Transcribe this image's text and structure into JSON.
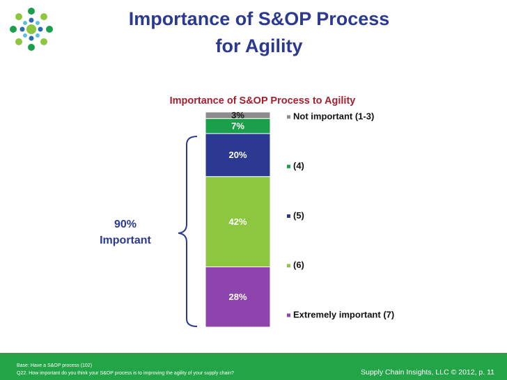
{
  "slide": {
    "title": [
      "Importance of S&OP Process",
      "for Agility"
    ],
    "footer": {
      "base": "Base:  Have a S&OP process (102)",
      "question": "Q22. How important do you think your S&OP process is to improving the agility of your supply chain?",
      "credit": "Supply Chain Insights, LLC © 2012, p. 11"
    }
  },
  "chart_data": {
    "type": "stacked_bar",
    "title": "Importance of S&OP Process to Agility",
    "annotation": [
      "90%",
      "Important"
    ],
    "series": [
      {
        "name": "Extremely important (7)",
        "color": "#8e44ad",
        "label_color": "#ffffff",
        "values": [
          28
        ],
        "value_labels": [
          "28%"
        ]
      },
      {
        "name": "(6)",
        "color": "#8dc63f",
        "label_color": "#ffffff",
        "values": [
          42
        ],
        "value_labels": [
          "42%"
        ]
      },
      {
        "name": "(5)",
        "color": "#2b3990",
        "label_color": "#ffffff",
        "values": [
          20
        ],
        "value_labels": [
          "20%"
        ]
      },
      {
        "name": "(4)",
        "color": "#1aa04a",
        "label_color": "#ffffff",
        "values": [
          7
        ],
        "value_labels": [
          "7%"
        ]
      },
      {
        "name": "Not important (1-3)",
        "color": "#8c8c8c",
        "label_color": "#1a1a1a",
        "values": [
          3
        ],
        "value_labels": [
          "3%"
        ]
      }
    ]
  }
}
